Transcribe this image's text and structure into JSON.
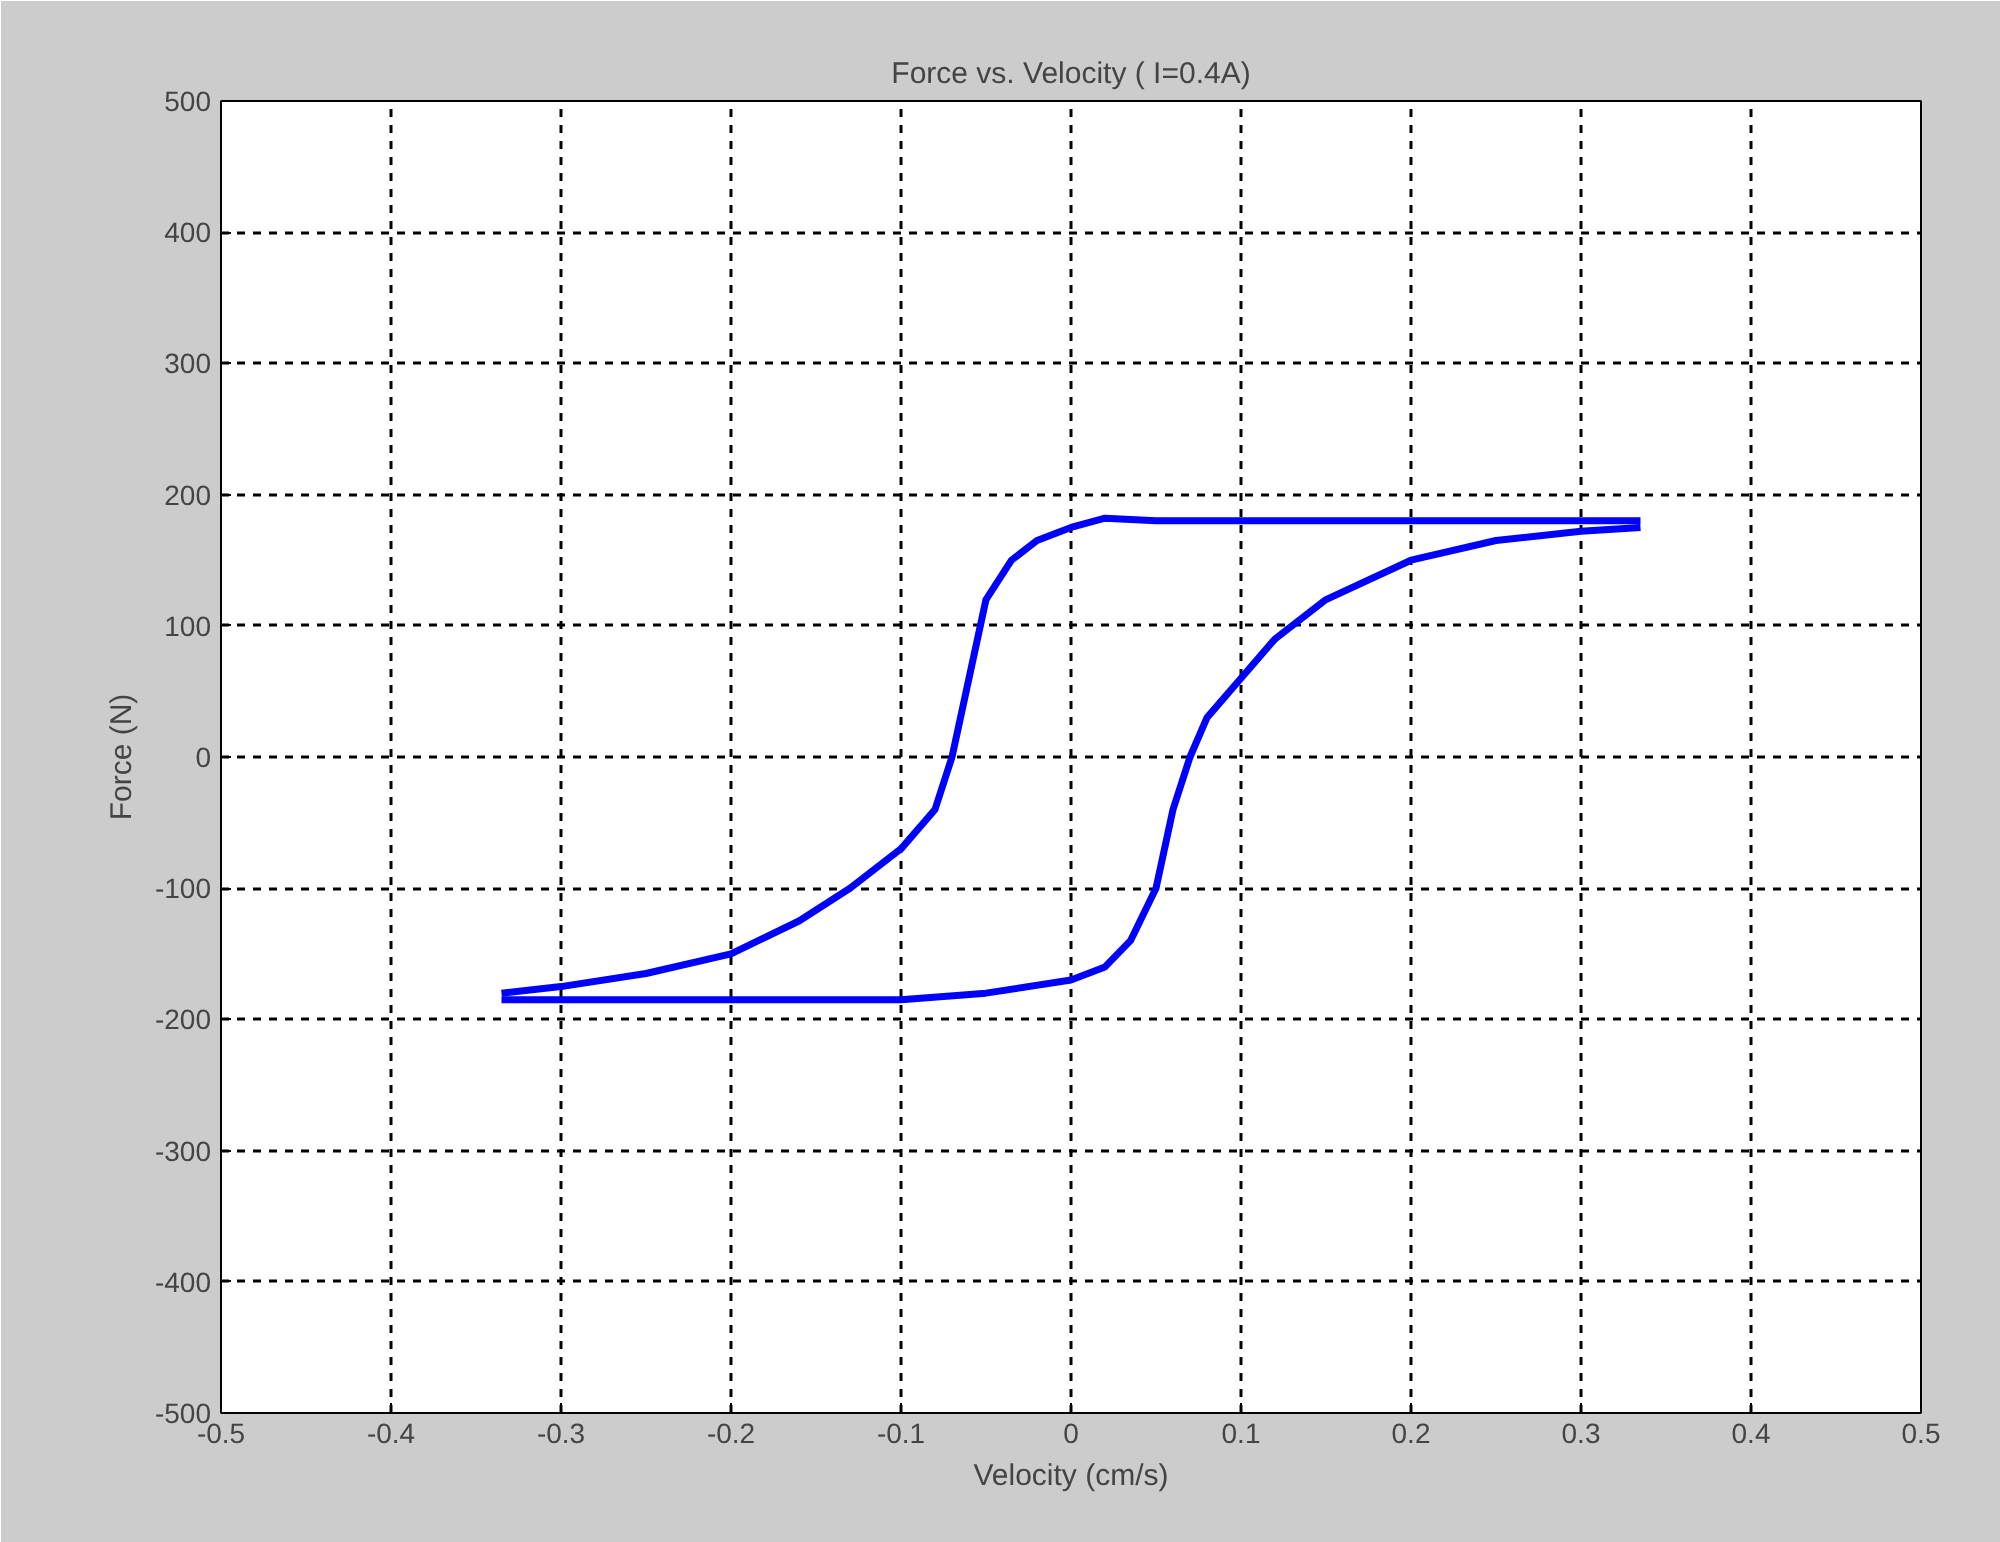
{
  "chart_data": {
    "type": "line",
    "title": "Force vs. Velocity ( I=0.4A)",
    "xlabel": "Velocity (cm/s)",
    "ylabel": "Force (N)",
    "series": [
      {
        "color": "#0000ff",
        "x": [
          -0.335,
          -0.3,
          -0.25,
          -0.2,
          -0.16,
          -0.13,
          -0.1,
          -0.08,
          -0.07,
          -0.06,
          -0.05,
          -0.035,
          -0.02,
          0.0,
          0.02,
          0.05,
          0.1,
          0.15,
          0.2,
          0.25,
          0.3,
          0.335
        ],
        "values": [
          -180,
          -175,
          -165,
          -150,
          -125,
          -100,
          -70,
          -40,
          0,
          60,
          120,
          150,
          165,
          175,
          182,
          180,
          180,
          180,
          180,
          180,
          180,
          180
        ]
      },
      {
        "color": "#0000ff",
        "x": [
          -0.335,
          -0.3,
          -0.25,
          -0.2,
          -0.15,
          -0.1,
          -0.05,
          0.0,
          0.02,
          0.035,
          0.05,
          0.06,
          0.07,
          0.08,
          0.1,
          0.12,
          0.15,
          0.2,
          0.25,
          0.3,
          0.335
        ],
        "values": [
          -185,
          -185,
          -185,
          -185,
          -185,
          -185,
          -180,
          -170,
          -160,
          -140,
          -100,
          -40,
          0,
          30,
          60,
          90,
          120,
          150,
          165,
          172,
          175
        ]
      }
    ],
    "xlim": [
      -0.5,
      0.5
    ],
    "ylim": [
      -500,
      500
    ],
    "xticks": [
      -0.5,
      -0.4,
      -0.3,
      -0.2,
      -0.1,
      0,
      0.1,
      0.2,
      0.3,
      0.4,
      0.5
    ],
    "yticks": [
      -500,
      -400,
      -300,
      -200,
      -100,
      0,
      100,
      200,
      300,
      400,
      500
    ],
    "grid": true,
    "marker": "none",
    "line_style": "solid"
  }
}
